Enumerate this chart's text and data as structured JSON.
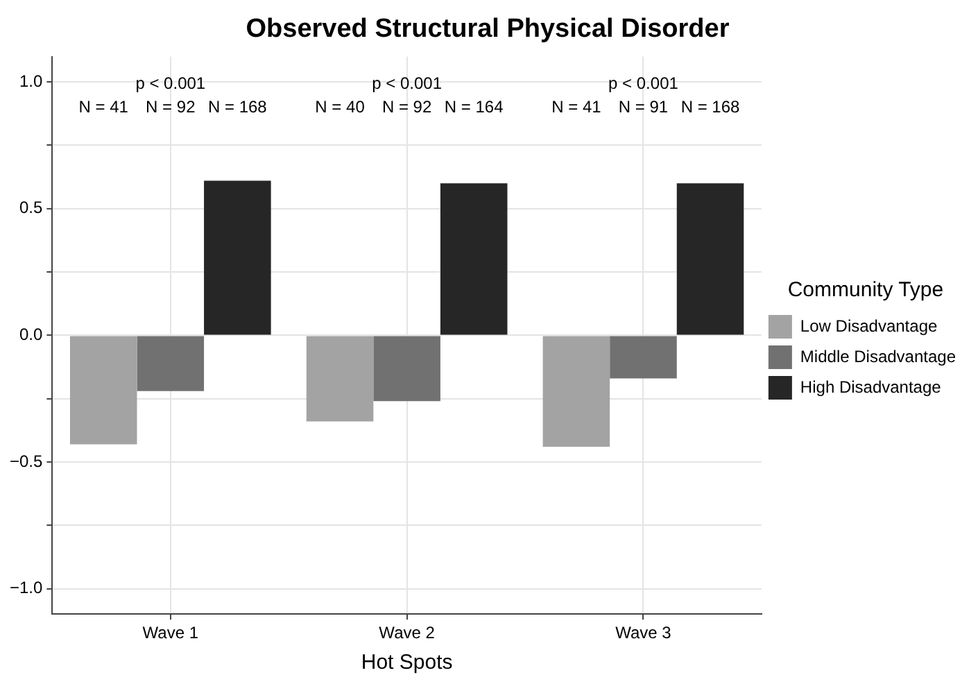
{
  "chart_data": {
    "type": "bar",
    "title": "Observed Structural Physical Disorder",
    "xlabel": "Hot Spots",
    "legend_title": "Community Type",
    "legend": "right",
    "grid": true,
    "categories": [
      "Wave 1",
      "Wave 2",
      "Wave 3"
    ],
    "series": [
      {
        "name": "Low Disadvantage",
        "color": "#a3a3a3",
        "values": [
          -0.43,
          -0.34,
          -0.44
        ]
      },
      {
        "name": "Middle Disadvantage",
        "color": "#717171",
        "values": [
          -0.22,
          -0.26,
          -0.17
        ]
      },
      {
        "name": "High Disadvantage",
        "color": "#262626",
        "values": [
          0.61,
          0.6,
          0.6
        ]
      }
    ],
    "ylim": [
      -1.1,
      1.1
    ],
    "yticks": [
      {
        "value": -1,
        "label": "−1.0"
      },
      {
        "value": -0.75,
        "label": null
      },
      {
        "value": -0.5,
        "label": "−0.5"
      },
      {
        "value": -0.25,
        "label": null
      },
      {
        "value": 0,
        "label": "0.0"
      },
      {
        "value": 0.25,
        "label": null
      },
      {
        "value": 0.5,
        "label": "0.5"
      },
      {
        "value": 0.75,
        "label": null
      },
      {
        "value": 1,
        "label": "1.0"
      }
    ],
    "annotations": [
      "p < 0.001",
      "N = 41",
      "N = 92",
      "N = 168",
      "p < 0.001",
      "N = 40",
      "N = 92",
      "N = 164",
      "p < 0.001",
      "N = 41",
      "N = 91",
      "N = 168"
    ]
  }
}
